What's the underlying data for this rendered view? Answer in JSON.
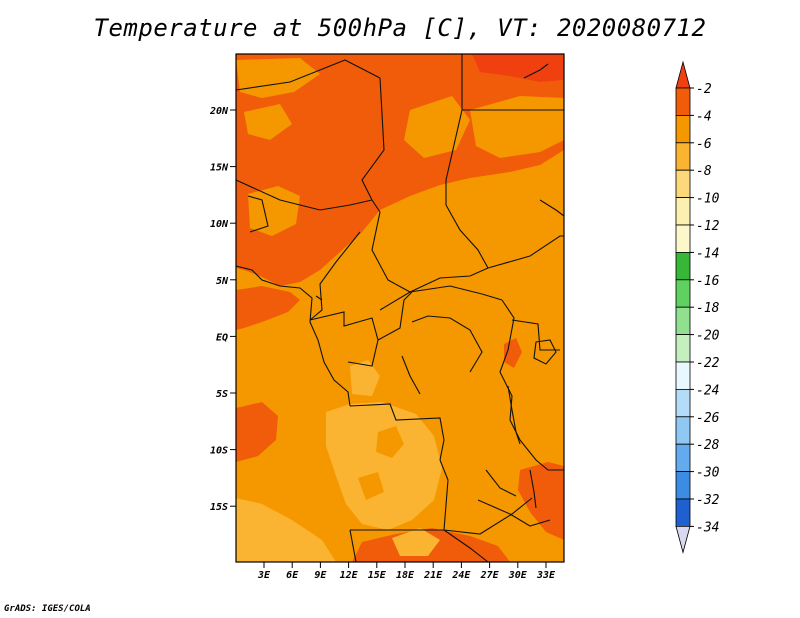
{
  "title": "Temperature at 500hPa [C], VT: 2020080712",
  "credit": "GrADS: IGES/COLA",
  "map": {
    "lat_labels": [
      "20N",
      "15N",
      "10N",
      "5N",
      "EQ",
      "5S",
      "10S",
      "15S"
    ],
    "lon_labels": [
      "3E",
      "6E",
      "9E",
      "12E",
      "15E",
      "18E",
      "21E",
      "24E",
      "27E",
      "30E",
      "33E"
    ],
    "field_colors": {
      "minus2_to_minus4": "#f05c0a",
      "minus4_to_minus6": "#f59800",
      "minus6_to_minus8": "#fab432",
      "warmest_top_corner": "#f04010"
    }
  },
  "colorbar": {
    "labels": [
      "-2",
      "-4",
      "-6",
      "-8",
      "-10",
      "-12",
      "-14",
      "-16",
      "-18",
      "-20",
      "-22",
      "-24",
      "-26",
      "-28",
      "-30",
      "-32",
      "-34"
    ],
    "top_arrow_color": "#f04010",
    "bottom_arrow_color": "#d8d8f0",
    "segment_colors": [
      "#f05c0a",
      "#f59800",
      "#fab432",
      "#fcd87a",
      "#fcf0b0",
      "#fcf8cc",
      "#36b836",
      "#60d060",
      "#90e090",
      "#c4f0c0",
      "#e8f8ff",
      "#b4dcf8",
      "#90c8f4",
      "#64aaee",
      "#3c8ce4",
      "#1e60d0",
      "#1848b0",
      "#0c1470"
    ]
  }
}
